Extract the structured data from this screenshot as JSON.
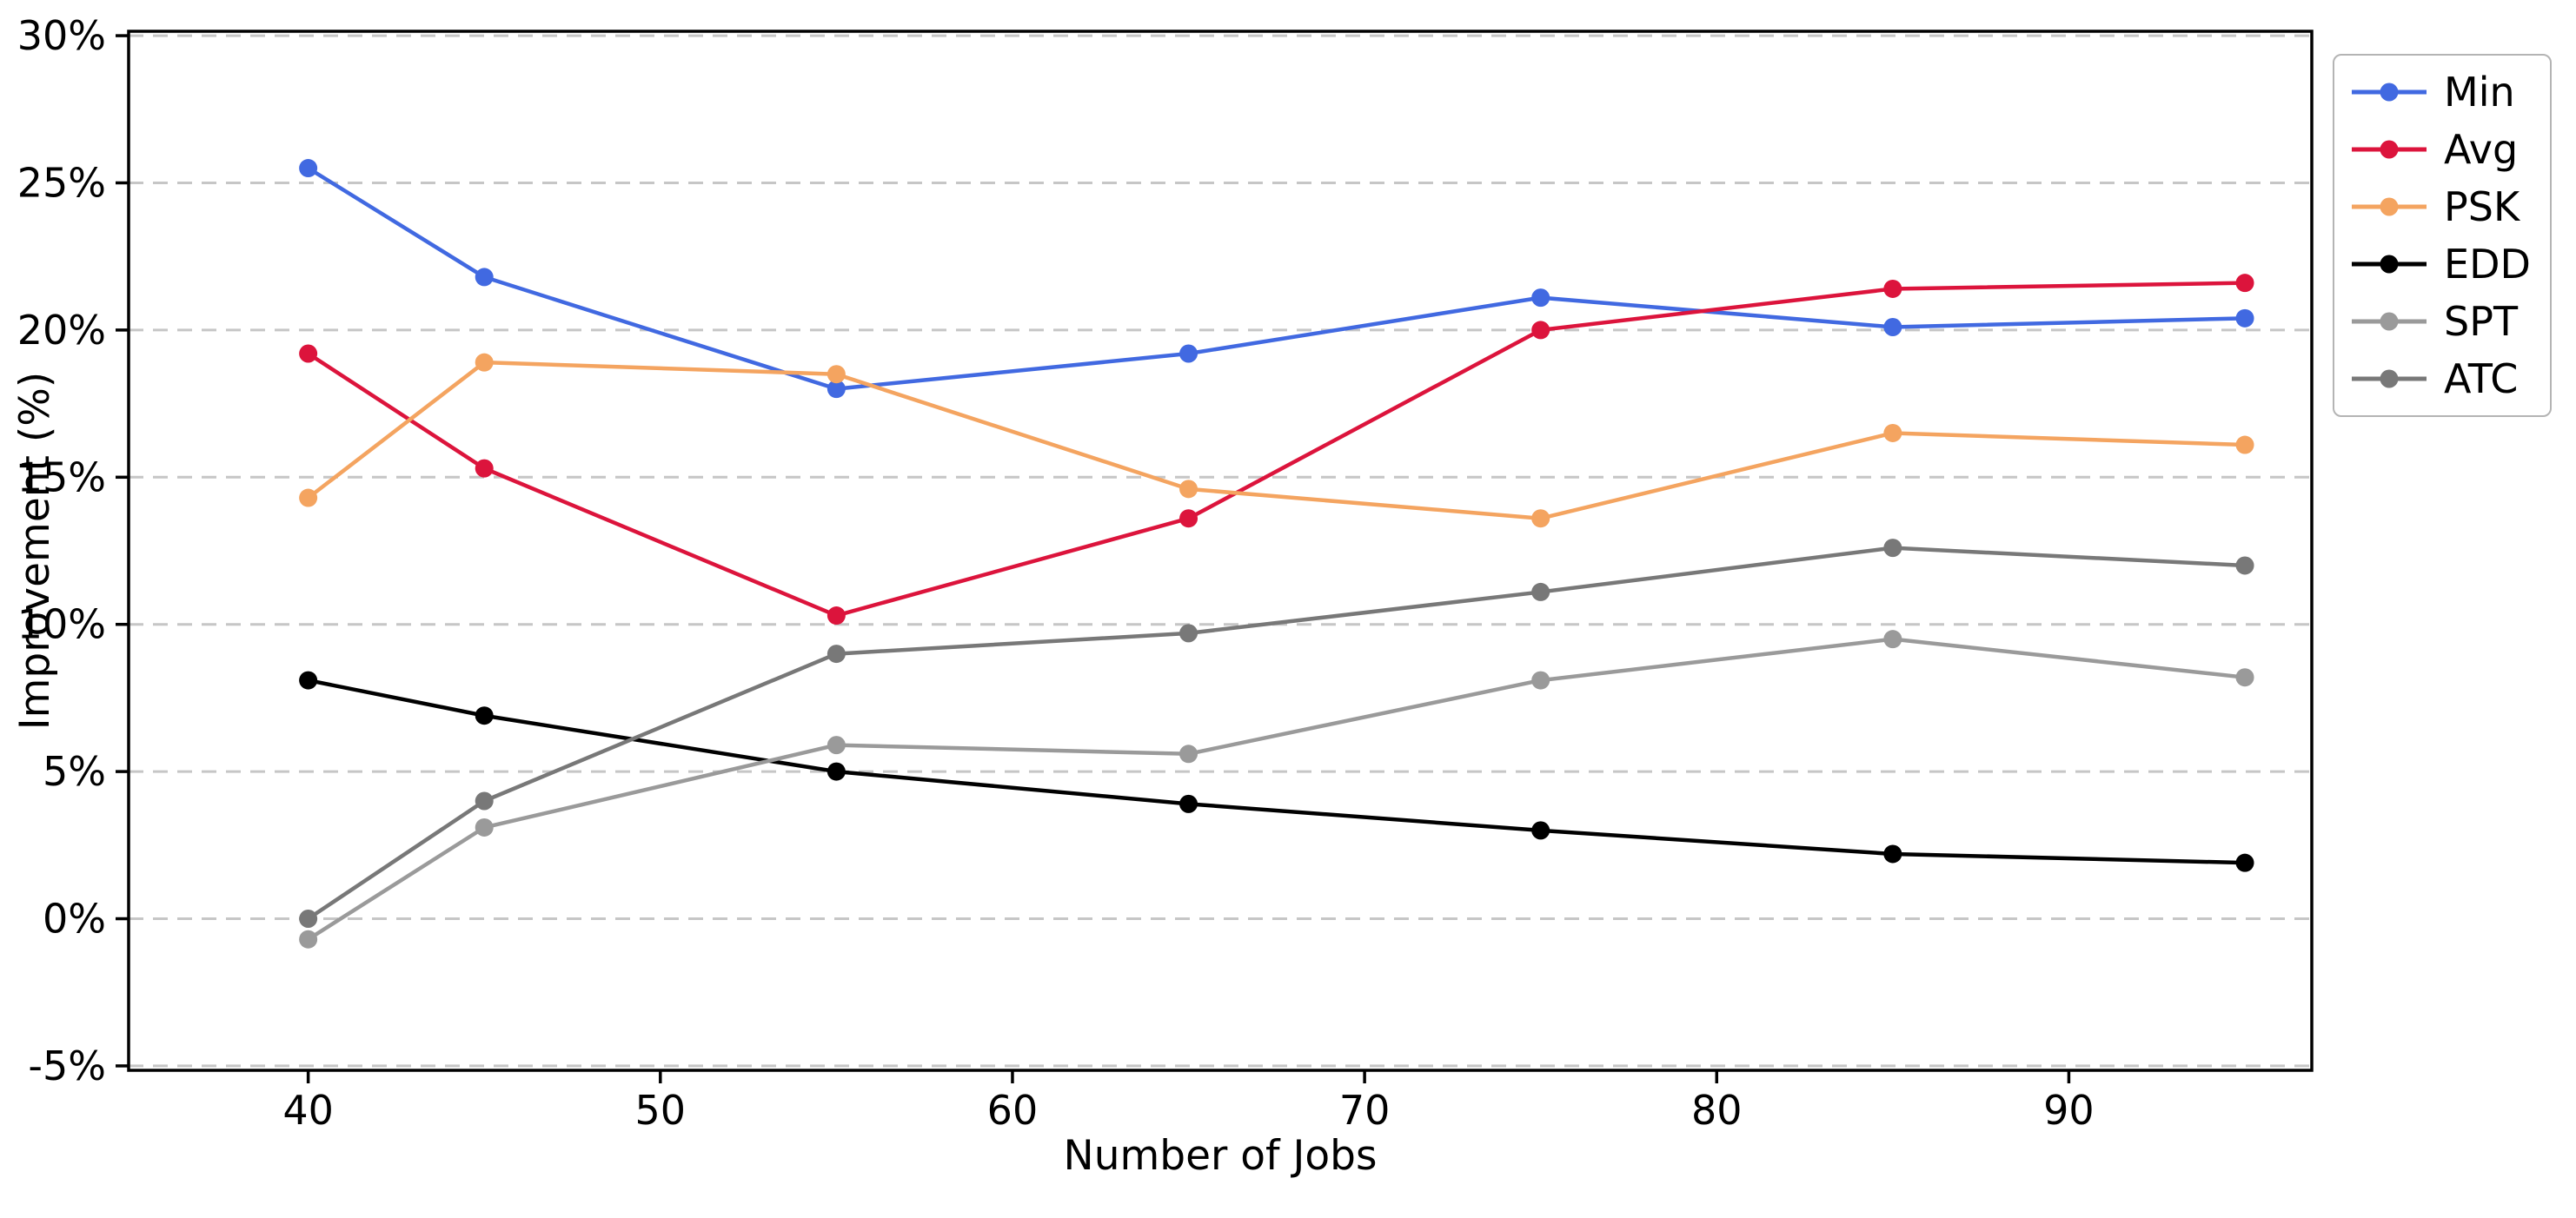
{
  "figure": {
    "background": "#ffffff",
    "plot_border_color": "#000000",
    "grid_color": "#c6c6c6",
    "grid_style": "dashed"
  },
  "chart_data": {
    "type": "line",
    "title": "",
    "xlabel": "Number of Jobs",
    "ylabel": "Improvement (%)",
    "x": [
      40,
      45,
      55,
      65,
      75,
      85,
      95
    ],
    "series": [
      {
        "name": "Min",
        "color": "#4169e1",
        "values": [
          25.5,
          21.8,
          18.0,
          19.2,
          21.1,
          20.1,
          20.4
        ]
      },
      {
        "name": "Avg",
        "color": "#dc143c",
        "values": [
          19.2,
          15.3,
          10.3,
          13.6,
          20.0,
          21.4,
          21.6
        ]
      },
      {
        "name": "PSK",
        "color": "#f4a460",
        "values": [
          14.3,
          18.9,
          18.5,
          14.6,
          13.6,
          16.5,
          16.1
        ]
      },
      {
        "name": "EDD",
        "color": "#000000",
        "values": [
          8.1,
          6.9,
          5.0,
          3.9,
          3.0,
          2.2,
          1.9
        ]
      },
      {
        "name": "SPT",
        "color": "#9a9a9a",
        "values": [
          -0.7,
          3.1,
          5.9,
          5.6,
          8.1,
          9.5,
          8.2
        ]
      },
      {
        "name": "ATC",
        "color": "#787878",
        "values": [
          0.0,
          4.0,
          9.0,
          9.7,
          11.1,
          12.6,
          12.0
        ]
      }
    ],
    "xlim": [
      34.9,
      96.9
    ],
    "ylim": [
      -5.15,
      30.15
    ],
    "x_ticks": [
      40,
      50,
      60,
      70,
      80,
      90
    ],
    "x_tick_labels": [
      "40",
      "50",
      "60",
      "70",
      "80",
      "90"
    ],
    "y_ticks": [
      -5,
      0,
      5,
      10,
      15,
      20,
      25,
      30
    ],
    "y_tick_labels": [
      "-5%",
      "0%",
      "5%",
      "10%",
      "15%",
      "20%",
      "25%",
      "30%"
    ],
    "grid": "horizontal dashed",
    "legend_position": "outside upper right",
    "legend_entries": [
      "Min",
      "Avg",
      "PSK",
      "EDD",
      "SPT",
      "ATC"
    ]
  }
}
